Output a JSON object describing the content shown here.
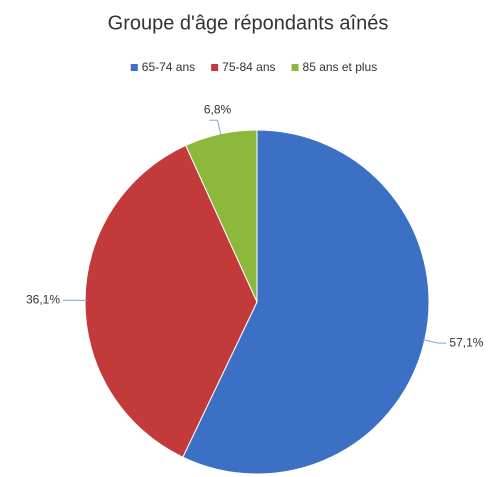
{
  "chart_data": {
    "type": "pie",
    "title": "Groupe d'âge répondants aînés",
    "categories": [
      "65-74 ans",
      "75-84 ans",
      "85 ans et plus"
    ],
    "values": [
      57.1,
      36.1,
      6.8
    ],
    "value_labels": [
      "57,1%",
      "36,1%",
      "6,8%"
    ],
    "colors": [
      "#3b70c4",
      "#c23a3a",
      "#8cb83c"
    ],
    "legend": "top"
  }
}
